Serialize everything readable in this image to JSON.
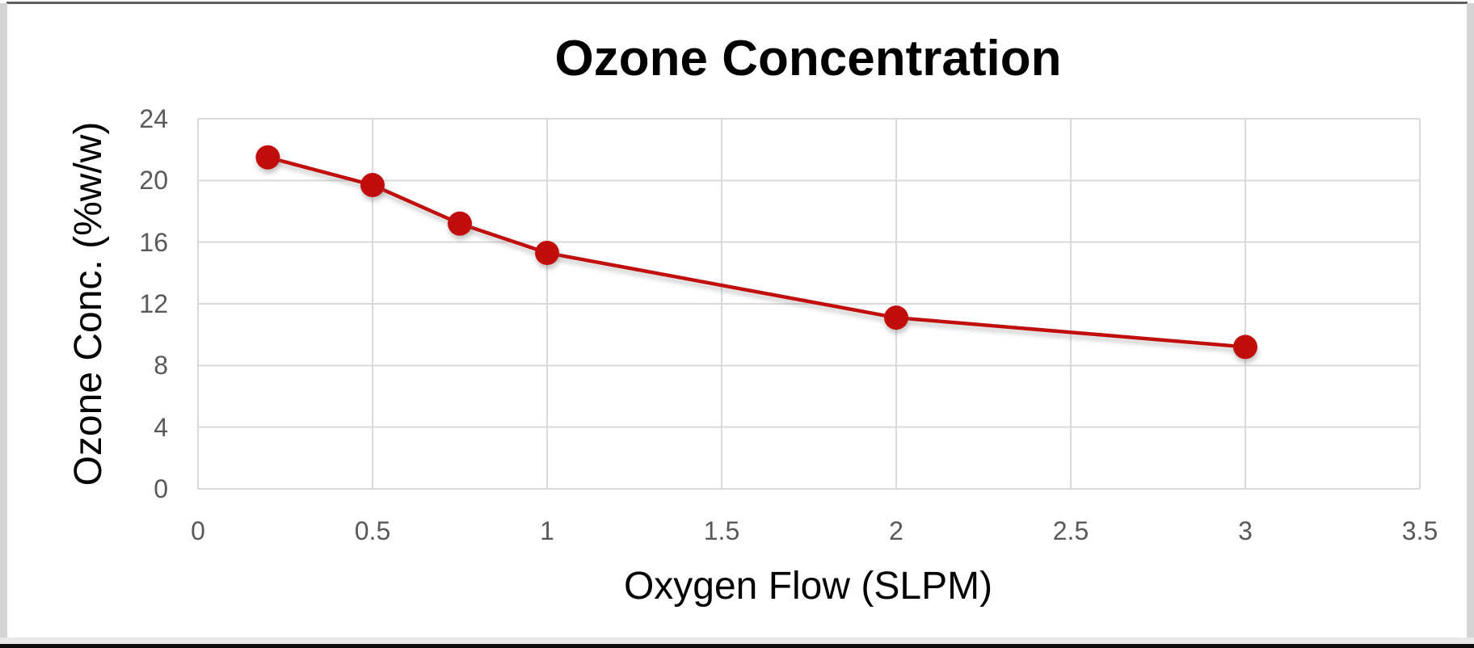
{
  "chart_data": {
    "type": "line",
    "title": "Ozone Concentration",
    "xlabel": "Oxygen Flow (SLPM)",
    "ylabel": "Ozone Conc. (%w/w)",
    "series": [
      {
        "name": "Ozone Concentration",
        "x": [
          0.2,
          0.5,
          0.75,
          1,
          2,
          3
        ],
        "y": [
          21.5,
          19.7,
          17.2,
          15.3,
          11.1,
          9.2
        ]
      }
    ],
    "xlim": [
      0,
      3.5
    ],
    "ylim": [
      0,
      24
    ],
    "x_ticks": [
      0,
      0.5,
      1,
      1.5,
      2,
      2.5,
      3,
      3.5
    ],
    "y_ticks": [
      0,
      4,
      8,
      12,
      16,
      20,
      24
    ],
    "x_tick_labels": [
      "0",
      "0.5",
      "1",
      "1.5",
      "2",
      "2.5",
      "3",
      "3.5"
    ],
    "y_tick_labels": [
      "0",
      "4",
      "8",
      "12",
      "16",
      "20",
      "24"
    ],
    "grid": true,
    "legend_position": "none",
    "marker": "circle",
    "colors": {
      "line": "#c20f0f",
      "marker": "#c20f0f",
      "gridline": "#d9d9d9",
      "tick_label": "#595959",
      "title": "#000000",
      "axis_label": "#000000"
    }
  }
}
